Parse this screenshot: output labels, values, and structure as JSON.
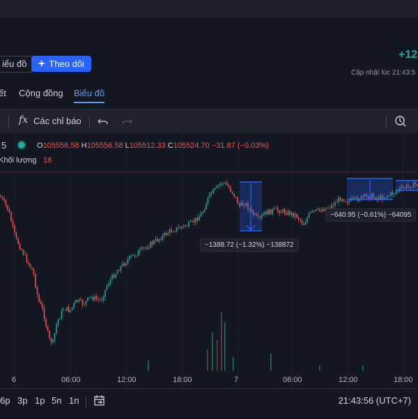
{
  "header": {
    "partial_button": "iểu đồ",
    "follow_label": "Theo dõi",
    "price_change": "+12",
    "update_text": "Cập nhật lúc  21:43:5",
    "tabs": [
      "ết",
      "Cộng đồng",
      "Biểu đồ"
    ]
  },
  "toolbar": {
    "indicators_label": "Các chỉ báo",
    "fx_glyph": "fx"
  },
  "legend": {
    "interval": "5",
    "o_label": "O",
    "o_value": "105556.58",
    "h_label": "H",
    "h_value": "105556.58",
    "l_label": "L",
    "l_value": "105512.33",
    "c_label": "C",
    "c_value": "105524.70",
    "change": "−31.87 (−0.03%)",
    "volume_label": "Khối lượng",
    "volume_value": "18"
  },
  "tooltips": {
    "left": "−1388.72 (−1.32%) −138872",
    "right": "−640.95 (−0.61%) −64095"
  },
  "x_axis": [
    "6",
    "06:00",
    "12:00",
    "18:00",
    "7",
    "06:00",
    "12:00",
    "18:00"
  ],
  "timeframes": [
    "6p",
    "3p",
    "1p",
    "5n",
    "1n"
  ],
  "clock": "21:43:56 (UTC+7)",
  "colors": {
    "up": "#26a69a",
    "down": "#ef5350",
    "accent": "#2962ff",
    "measure": "#2962ff"
  }
}
